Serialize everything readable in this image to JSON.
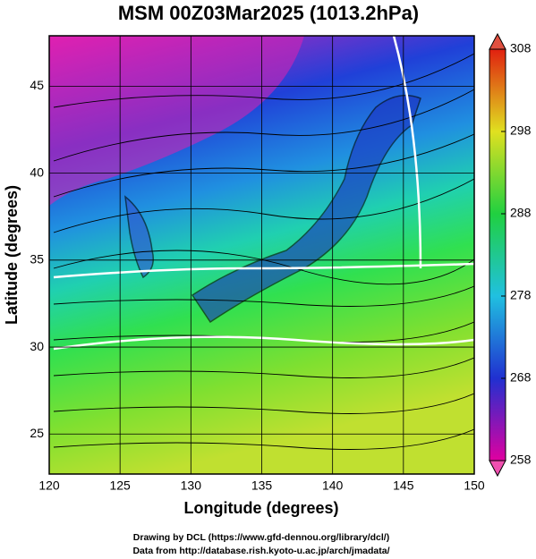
{
  "title": "MSM 00Z03Mar2025 (1013.2hPa)",
  "x_axis": {
    "label": "Longitude (degrees)",
    "lim": [
      120,
      150
    ],
    "ticks": [
      120,
      125,
      130,
      135,
      140,
      145,
      150
    ]
  },
  "y_axis": {
    "label": "Latitude  (degrees)",
    "lim": [
      22.7,
      47.9
    ],
    "ticks": [
      25,
      30,
      35,
      40,
      45
    ]
  },
  "colorbar": {
    "lim": [
      258,
      308
    ],
    "ticks": [
      258,
      268,
      278,
      288,
      298,
      308
    ]
  },
  "credits": [
    "Drawing by DCL (https://www.gfd-dennou.org/library/dcl/)",
    "Data from http://database.rish.kyoto-u.ac.jp/arch/jmadata/"
  ]
}
